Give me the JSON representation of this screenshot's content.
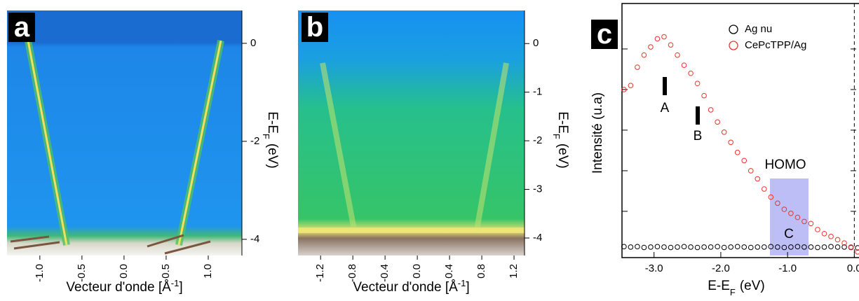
{
  "chart_data": [
    {
      "type": "image",
      "label": "a",
      "xlim": [
        -1.39,
        1.4
      ],
      "xticks": [
        {
          "value": -1,
          "label": "-1.0"
        },
        -0.5,
        {
          "value": 0,
          "label": "0.0"
        },
        0.5,
        {
          "value": 1,
          "label": "1.0"
        }
      ],
      "ylim": [
        -4.33,
        0.67
      ],
      "yticks": [
        0,
        -2,
        -4
      ],
      "xlabel": "Vecteur d'onde [Å",
      "xlabel_sup": "-1",
      "xlabel_end": "]",
      "ylabel": "E-E",
      "ylabel_sub": "F",
      "ylabel_unit": "(eV)"
    },
    {
      "type": "image",
      "label": "b",
      "xlim": [
        -1.48,
        1.33
      ],
      "xticks": [
        -1.2,
        -0.8,
        -0.4,
        {
          "value": 0,
          "label": "0.0"
        },
        0.4,
        0.8,
        1.2
      ],
      "ylim": [
        -4.36,
        0.68
      ],
      "yticks": [
        0,
        -1,
        -2,
        -3,
        -4
      ],
      "xlabel": "Vecteur d'onde [Å",
      "xlabel_sup": "-1",
      "xlabel_end": "]",
      "ylabel": "E-E",
      "ylabel_sub": "F",
      "ylabel_unit": "(eV)"
    },
    {
      "type": "scatter",
      "label": "c",
      "xlim": [
        -3.48,
        0.07
      ],
      "xticks": [
        {
          "value": -3,
          "label": "-3.0"
        },
        {
          "value": -2,
          "label": "-2.0"
        },
        {
          "value": -1,
          "label": "-1.0"
        },
        {
          "value": 0,
          "label": "0.0"
        }
      ],
      "ylim": [
        -0.14,
        6.12
      ],
      "yticks": [
        1,
        2,
        3,
        4,
        5
      ],
      "xlabel": "E-E",
      "xlabel_sub": "F",
      "xlabel_unit": "(eV)",
      "ylabel": "Intensité  (u.a)",
      "annotations": [
        "A",
        "B",
        "HOMO",
        "C"
      ],
      "x": [
        -3.45,
        -3.35,
        -3.25,
        -3.15,
        -3.05,
        -2.95,
        -2.85,
        -2.75,
        -2.65,
        -2.55,
        -2.45,
        -2.35,
        -2.25,
        -2.15,
        -2.05,
        -1.95,
        -1.85,
        -1.75,
        -1.65,
        -1.55,
        -1.45,
        -1.35,
        -1.25,
        -1.15,
        -1.05,
        -0.95,
        -0.85,
        -0.75,
        -0.65,
        -0.55,
        -0.45,
        -0.35,
        -0.25,
        -0.15,
        -0.05,
        0.05
      ],
      "series": [
        {
          "name": "Ag nu",
          "color": "#000000",
          "values": [
            0.13,
            0.12,
            0.13,
            0.11,
            0.12,
            0.13,
            0.12,
            0.11,
            0.12,
            0.13,
            0.12,
            0.11,
            0.12,
            0.12,
            0.13,
            0.11,
            0.12,
            0.13,
            0.12,
            0.11,
            0.12,
            0.12,
            0.13,
            0.12,
            0.11,
            0.12,
            0.13,
            0.12,
            0.12,
            0.11,
            0.12,
            0.13,
            0.12,
            0.12,
            0.11,
            0.1
          ]
        },
        {
          "name": "CePcTPP/Ag",
          "color": "#e8332a",
          "values": [
            4.0,
            4.1,
            4.55,
            4.85,
            5.05,
            5.25,
            5.3,
            5.1,
            4.85,
            4.6,
            4.4,
            4.15,
            3.85,
            3.5,
            3.2,
            2.95,
            2.7,
            2.45,
            2.25,
            2.0,
            1.8,
            1.55,
            1.35,
            1.2,
            1.05,
            0.95,
            0.85,
            0.75,
            0.7,
            0.55,
            0.45,
            0.38,
            0.3,
            0.22,
            0.12,
            0.0
          ]
        }
      ]
    }
  ]
}
